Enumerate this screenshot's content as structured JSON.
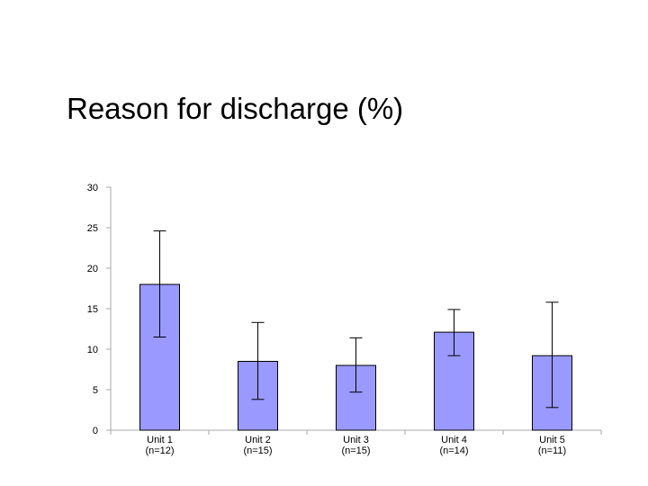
{
  "slide": {
    "title": "Reason for discharge (%)"
  },
  "chart_data": {
    "type": "bar",
    "title": "Reason for discharge (%)",
    "xlabel": "",
    "ylabel": "",
    "ylim": [
      0,
      30
    ],
    "yticks": [
      0,
      5,
      10,
      15,
      20,
      25,
      30
    ],
    "categories": [
      {
        "line1": "Unit 1",
        "line2": "(n=12)"
      },
      {
        "line1": "Unit 2",
        "line2": "(n=15)"
      },
      {
        "line1": "Unit 3",
        "line2": "(n=15)"
      },
      {
        "line1": "Unit 4",
        "line2": "(n=14)"
      },
      {
        "line1": "Unit 5",
        "line2": "(n=11)"
      }
    ],
    "values": [
      18.0,
      8.5,
      8.0,
      12.1,
      9.2
    ],
    "error_low": [
      11.5,
      3.8,
      4.7,
      9.2,
      2.8
    ],
    "error_high": [
      24.6,
      13.3,
      11.4,
      14.9,
      15.8
    ],
    "grid": false,
    "legend": "none",
    "colors": {
      "bar_fill": "#9999ff",
      "bar_stroke": "#000000",
      "axis": "#aaaaaa"
    }
  }
}
